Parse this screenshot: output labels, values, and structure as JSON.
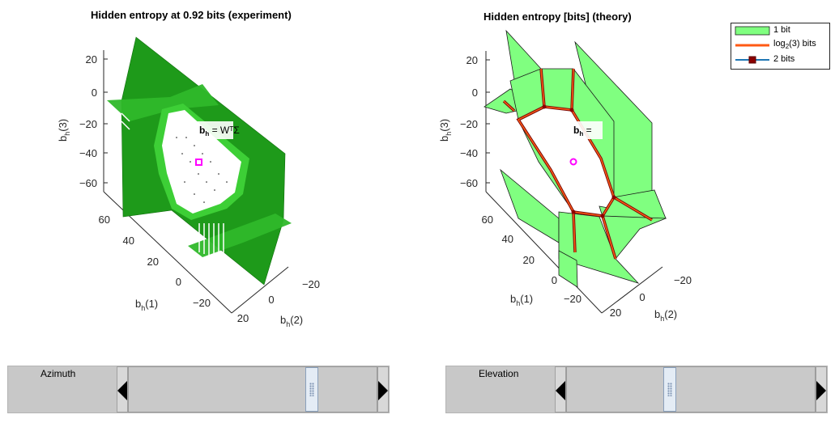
{
  "left_plot": {
    "title": "Hidden entropy at 0.92 bits (experiment)",
    "z_ticks": [
      "20",
      "0",
      "−20",
      "−40",
      "−60"
    ],
    "x_ticks": [
      "60",
      "40",
      "20",
      "0",
      "−20"
    ],
    "y_ticks": [
      "20",
      "0",
      "−20"
    ],
    "z_label": "b",
    "z_sub": "h",
    "z_suffix": "(3)",
    "x_label": "b",
    "x_sub": "h",
    "x_suffix": "(1)",
    "y_label": "b",
    "y_sub": "h",
    "y_suffix": "(2)",
    "annotation": "b",
    "annotation_sub": "h",
    "annotation_rest": " = WᵀΣ"
  },
  "right_plot": {
    "title": "Hidden entropy [bits] (theory)",
    "z_ticks": [
      "20",
      "0",
      "−20",
      "−40",
      "−60"
    ],
    "x_ticks": [
      "60",
      "40",
      "20",
      "0",
      "−20"
    ],
    "y_ticks": [
      "20",
      "0",
      "−20"
    ],
    "z_label": "b",
    "z_sub": "h",
    "z_suffix": "(3)",
    "x_label": "b",
    "x_sub": "h",
    "x_suffix": "(1)",
    "y_label": "b",
    "y_sub": "h",
    "y_suffix": "(2)",
    "annotation": "b",
    "annotation_sub": "h",
    "annotation_rest": " ="
  },
  "legend": {
    "items": [
      {
        "label": "1 bit"
      },
      {
        "label_pre": "log",
        "label_sub": "2",
        "label_post": "(3) bits"
      },
      {
        "label": "2 bits"
      }
    ]
  },
  "controls": {
    "azimuth_label": "Azimuth",
    "elevation_label": "Elevation",
    "azimuth_value": 0.75,
    "elevation_value": 0.41
  },
  "colors": {
    "exp_green": "#22a01e",
    "theory_green": "#80ff80",
    "log3_line": "#ff5a14",
    "two_bit_line": "#1f77b4",
    "two_bit_marker": "#8b0000",
    "origin_marker": "#ff00ff"
  }
}
